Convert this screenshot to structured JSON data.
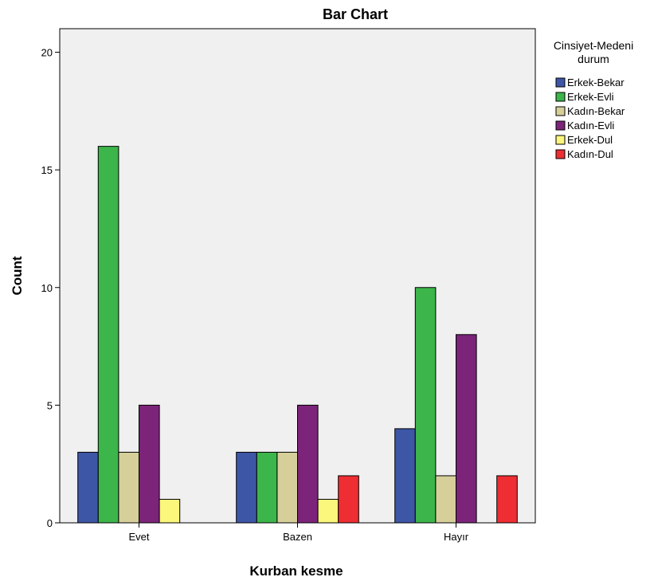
{
  "chart_data": {
    "type": "bar",
    "title": "Bar Chart",
    "xlabel": "Kurban kesme",
    "ylabel": "Count",
    "categories": [
      "Evet",
      "Bazen",
      "Hayır"
    ],
    "ylim": [
      0,
      21
    ],
    "yticks": [
      "0",
      "5",
      "10",
      "15",
      "20"
    ],
    "grid": false,
    "legend": {
      "title_line1": "Cinsiyet-Medeni",
      "title_line2": "durum",
      "placement": "right"
    },
    "series": [
      {
        "name": "Erkek-Bekar",
        "color": "#3e56a6",
        "values": [
          3,
          3,
          4
        ]
      },
      {
        "name": "Erkek-Evli",
        "color": "#3cb54a",
        "values": [
          16,
          3,
          10
        ]
      },
      {
        "name": "Kadın-Bekar",
        "color": "#d6cf9a",
        "values": [
          3,
          3,
          2
        ]
      },
      {
        "name": "Kadın-Evli",
        "color": "#7b2479",
        "values": [
          5,
          5,
          8
        ]
      },
      {
        "name": "Erkek-Dul",
        "color": "#fbf67c",
        "values": [
          1,
          1,
          0
        ]
      },
      {
        "name": "Kadın-Dul",
        "color": "#ee2e32",
        "values": [
          0,
          2,
          2
        ]
      }
    ]
  }
}
